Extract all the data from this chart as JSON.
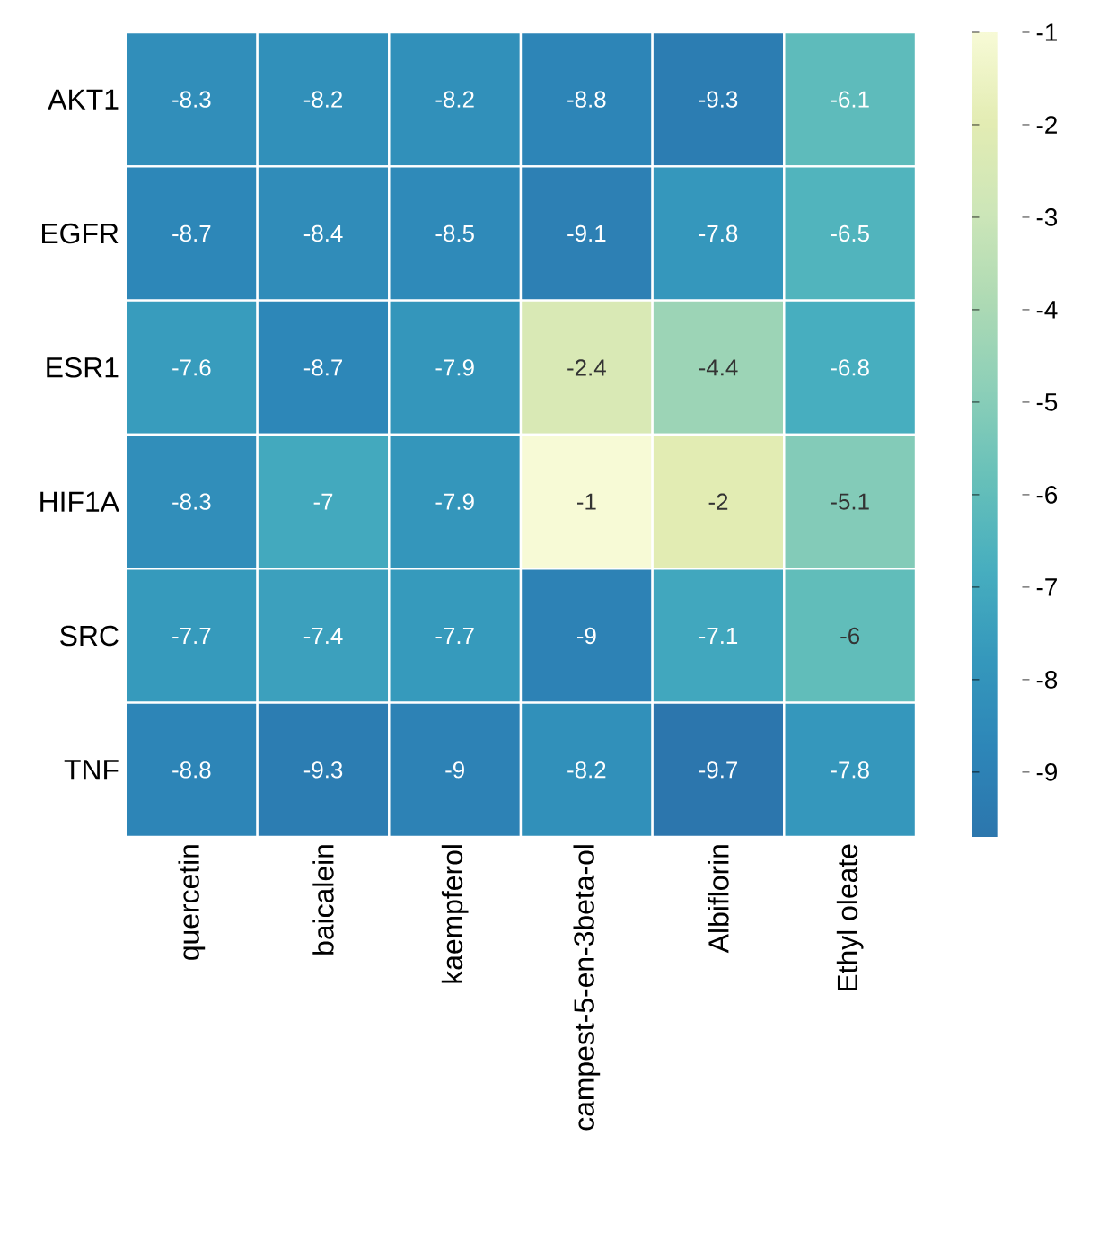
{
  "chart_data": {
    "type": "heatmap",
    "categories": [
      "quercetin",
      "baicalein",
      "kaempferol",
      "campest-5-en-3beta-ol",
      "Albiflorin",
      "Ethyl oleate"
    ],
    "y_categories": [
      "AKT1",
      "EGFR",
      "ESR1",
      "HIF1A",
      "SRC",
      "TNF"
    ],
    "cells": [
      [
        -8.3,
        -8.2,
        -8.2,
        -8.8,
        -9.3,
        -6.1
      ],
      [
        -8.7,
        -8.4,
        -8.5,
        -9.1,
        -7.8,
        -6.5
      ],
      [
        -7.6,
        -8.7,
        -7.9,
        -2.4,
        -4.4,
        -6.8
      ],
      [
        -8.3,
        -7,
        -7.9,
        -1,
        -2,
        -5.1
      ],
      [
        -7.7,
        -7.4,
        -7.7,
        -9,
        -7.1,
        -6
      ],
      [
        -8.8,
        -9.3,
        -9,
        -8.2,
        -9.7,
        -7.8
      ]
    ],
    "data_labels": true,
    "clim": [
      -9.7,
      -1
    ],
    "cticks": [
      -9,
      -8,
      -7,
      -6,
      -5,
      -4,
      -3,
      -2,
      -1
    ]
  }
}
